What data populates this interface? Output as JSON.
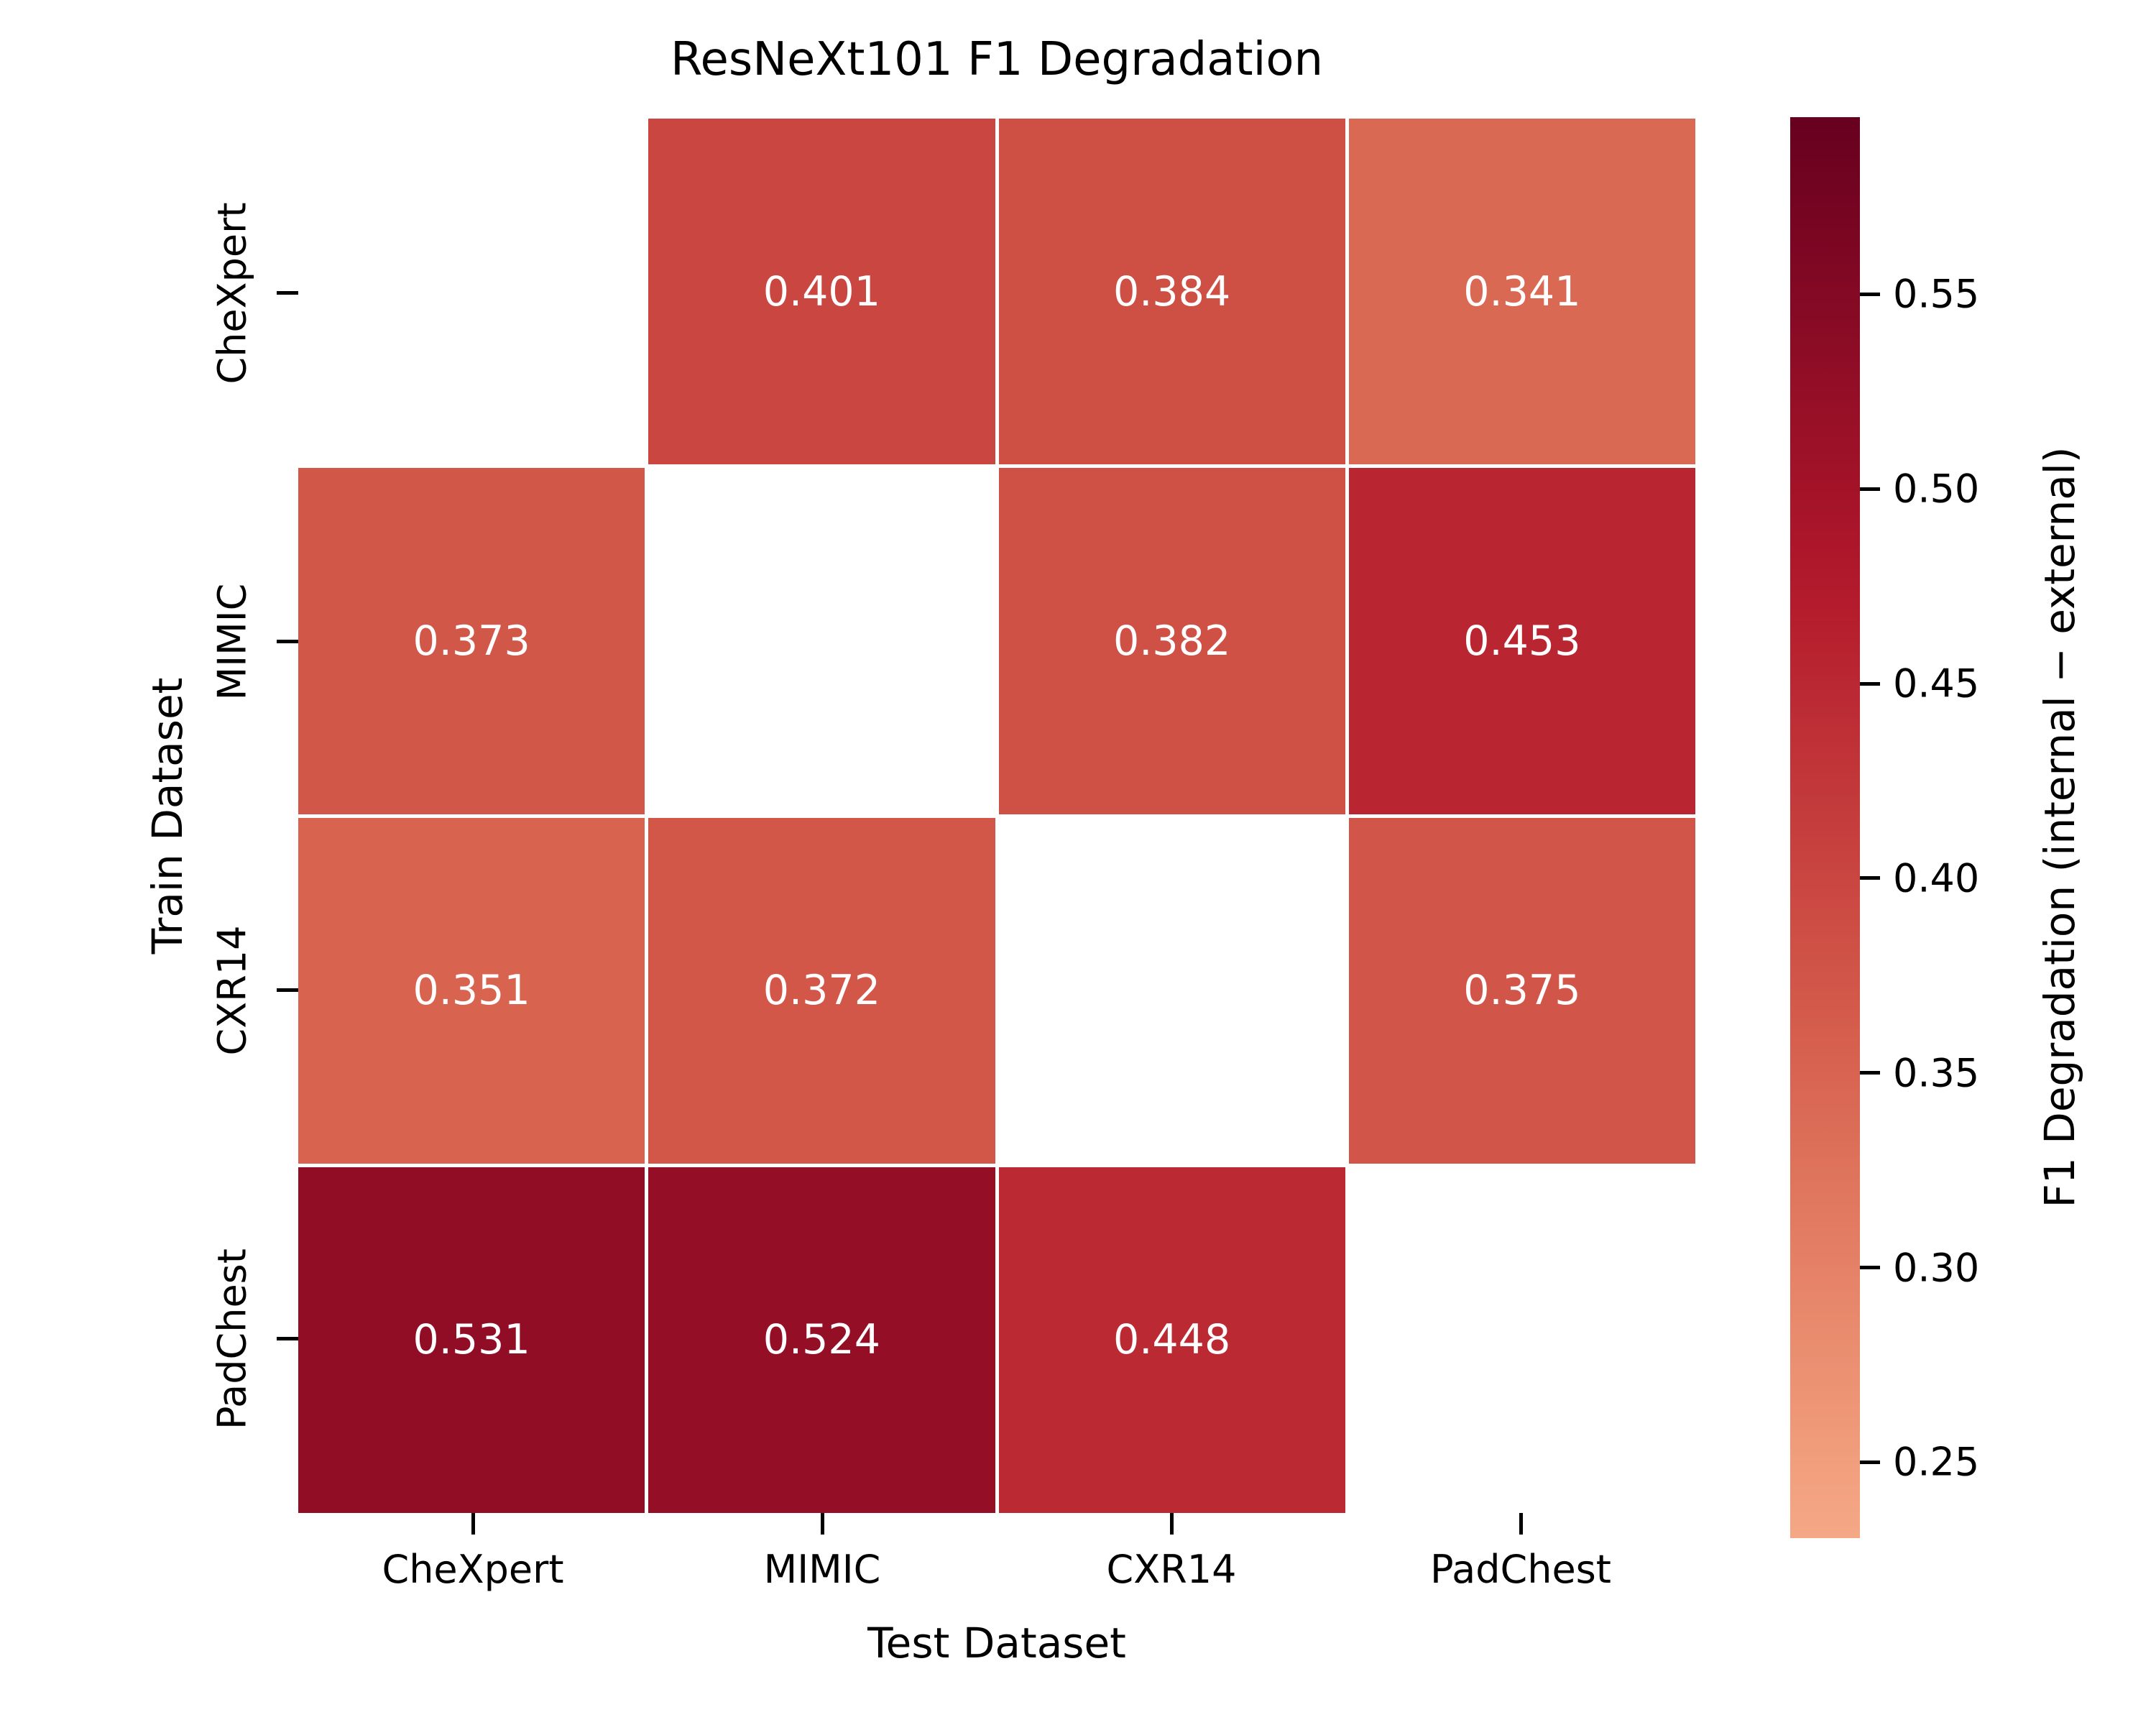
{
  "chart_data": {
    "type": "heatmap",
    "title": "ResNeXt101 F1 Degradation",
    "xlabel": "Test Dataset",
    "ylabel": "Train Dataset",
    "x_categories": [
      "CheXpert",
      "MIMIC",
      "CXR14",
      "PadChest"
    ],
    "y_categories": [
      "CheXpert",
      "MIMIC",
      "CXR14",
      "PadChest"
    ],
    "values": [
      [
        null,
        0.401,
        0.384,
        0.341
      ],
      [
        0.373,
        null,
        0.382,
        0.453
      ],
      [
        0.351,
        0.372,
        null,
        0.375
      ],
      [
        0.531,
        0.524,
        0.448,
        null
      ]
    ],
    "value_decimals": 3,
    "masked_cells": "diagonal (train == test)",
    "annotation_color": "#ffffff",
    "cell_line_color": "#ffffff",
    "background": "#ffffff",
    "text_color": "#000000",
    "grid": false,
    "legend_position": "right-colorbar",
    "colorbar": {
      "label": "F1 Degradation (internal − external)",
      "tick_labels": [
        "0.55",
        "0.50",
        "0.45",
        "0.40",
        "0.35",
        "0.30",
        "0.25"
      ],
      "tick_values": [
        0.55,
        0.5,
        0.45,
        0.4,
        0.35,
        0.3,
        0.25
      ],
      "vmin": 0.2305,
      "vmax": 0.5955
    },
    "colormap": {
      "name": "red half of RdBu_r (center=0 normalization)",
      "center_vmax": 0.5955,
      "stops": [
        {
          "pos": 0.5,
          "color": "#f7f7f7"
        },
        {
          "pos": 0.6,
          "color": "#fddbc7"
        },
        {
          "pos": 0.7,
          "color": "#f4a582"
        },
        {
          "pos": 0.8,
          "color": "#d6604d"
        },
        {
          "pos": 0.9,
          "color": "#b2182b"
        },
        {
          "pos": 1.0,
          "color": "#67001f"
        }
      ]
    }
  }
}
